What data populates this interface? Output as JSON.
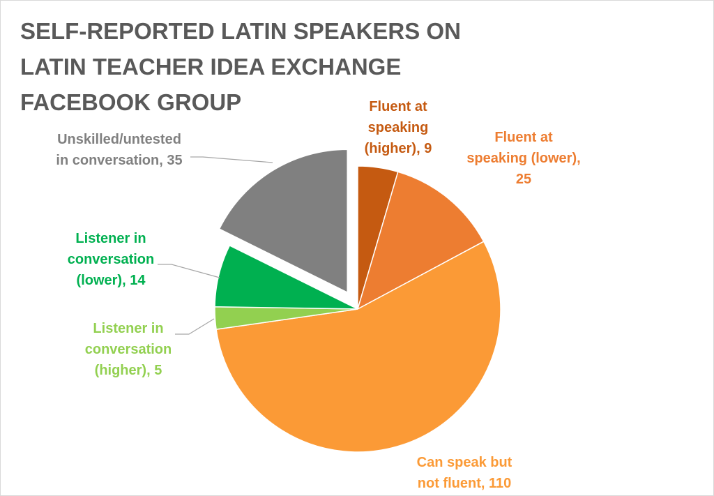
{
  "chart_data": {
    "type": "pie",
    "title": "SELF-REPORTED LATIN SPEAKERS ON\nLATIN TEACHER IDEA EXCHANGE\nFACEBOOK GROUP",
    "slices": [
      {
        "name": "Fluent at speaking (higher)",
        "value": 9,
        "color": "#c55a11",
        "label_lines": [
          "Fluent at",
          "speaking",
          "(higher), 9"
        ],
        "exploded": false
      },
      {
        "name": "Fluent at speaking (lower)",
        "value": 25,
        "color": "#ed7d31",
        "label_lines": [
          "Fluent at",
          "speaking (lower),",
          "25"
        ],
        "exploded": false
      },
      {
        "name": "Can speak but not fluent",
        "value": 110,
        "color": "#fb9a36",
        "label_lines": [
          "Can speak but",
          "not fluent, 110"
        ],
        "exploded": false
      },
      {
        "name": "Listener in conversation (higher)",
        "value": 5,
        "color": "#92d050",
        "label_lines": [
          "Listener in",
          "conversation",
          "(higher), 5"
        ],
        "exploded": false
      },
      {
        "name": "Listener in conversation (lower)",
        "value": 14,
        "color": "#00b050",
        "label_lines": [
          "Listener in",
          "conversation",
          "(lower), 14"
        ],
        "exploded": false
      },
      {
        "name": "Unskilled/untested in conversation",
        "value": 35,
        "color": "#808080",
        "label_lines": [
          "Unskilled/untested",
          "in conversation, 35"
        ],
        "exploded": true
      }
    ],
    "start_angle": "12 o'clock",
    "direction": "clockwise",
    "legend": "none"
  }
}
